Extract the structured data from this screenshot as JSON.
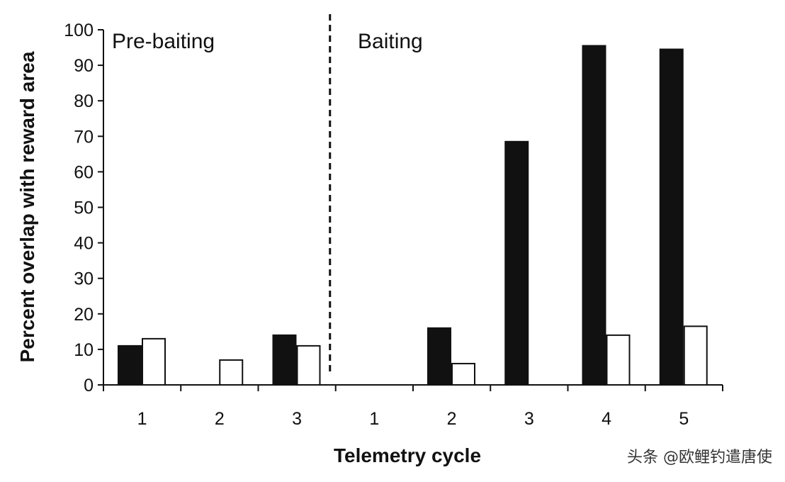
{
  "chart_data": {
    "type": "bar",
    "title": "",
    "xlabel": "Telemetry cycle",
    "ylabel": "Percent overlap with reward area",
    "ylim": [
      0,
      100
    ],
    "yticks": [
      0,
      10,
      20,
      30,
      40,
      50,
      60,
      70,
      80,
      90,
      100
    ],
    "grid": false,
    "legend": "none",
    "phases": [
      {
        "label": "Pre-baiting",
        "categories": [
          "1",
          "2",
          "3"
        ]
      },
      {
        "label": "Baiting",
        "categories": [
          "1",
          "2",
          "3",
          "4",
          "5"
        ]
      }
    ],
    "categories": [
      "1",
      "2",
      "3",
      "1",
      "2",
      "3",
      "4",
      "5"
    ],
    "divider_after_index": 2,
    "series": [
      {
        "fill": "#111111",
        "values": [
          11,
          0,
          14,
          0,
          16,
          68.5,
          95.5,
          94.5
        ]
      },
      {
        "fill": "#ffffff",
        "values": [
          13,
          7,
          11,
          0,
          6,
          0,
          14,
          16.5
        ]
      }
    ]
  },
  "watermark": "头条 @欧鲤钓遣唐使"
}
